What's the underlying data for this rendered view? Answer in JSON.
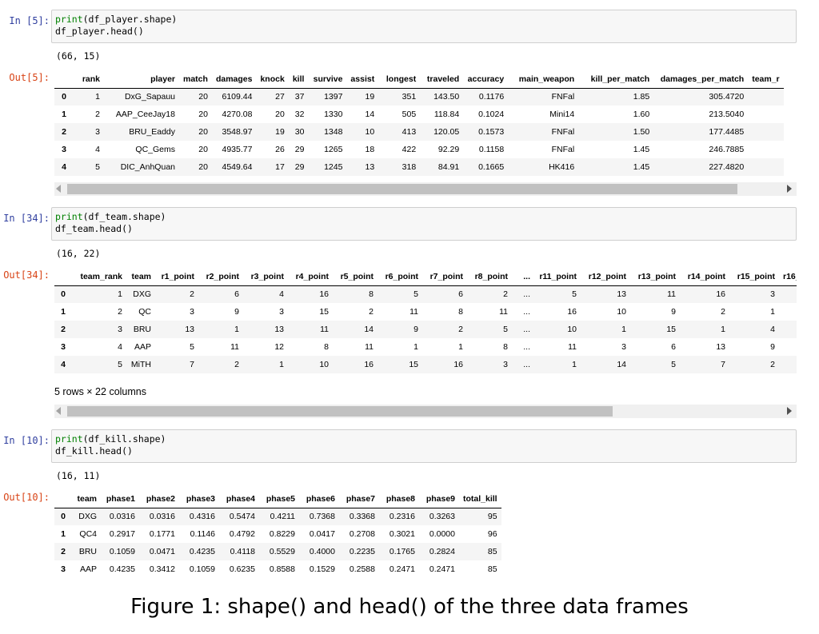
{
  "cell1": {
    "in_prompt": "In [5]:",
    "code_print": "print",
    "code_line1_rest": "(df_player.shape)",
    "code_line2": "df_player.head()",
    "shape": "(66, 15)",
    "out_prompt": "Out[5]:",
    "columns": [
      "",
      "rank",
      "player",
      "match",
      "damages",
      "knock",
      "kill",
      "survive",
      "assist",
      "longest",
      "traveled",
      "accuracy",
      "main_weapon",
      "kill_per_match",
      "damages_per_match",
      "team_r"
    ],
    "rows": [
      [
        "0",
        "1",
        "DxG_Sapauu",
        "20",
        "6109.44",
        "27",
        "37",
        "1397",
        "19",
        "351",
        "143.50",
        "0.1176",
        "FNFal",
        "1.85",
        "305.4720",
        ""
      ],
      [
        "1",
        "2",
        "AAP_CeeJay18",
        "20",
        "4270.08",
        "20",
        "32",
        "1330",
        "14",
        "505",
        "118.84",
        "0.1024",
        "Mini14",
        "1.60",
        "213.5040",
        ""
      ],
      [
        "2",
        "3",
        "BRU_Eaddy",
        "20",
        "3548.97",
        "19",
        "30",
        "1348",
        "10",
        "413",
        "120.05",
        "0.1573",
        "FNFal",
        "1.50",
        "177.4485",
        ""
      ],
      [
        "3",
        "4",
        "QC_Gems",
        "20",
        "4935.77",
        "26",
        "29",
        "1265",
        "18",
        "422",
        "92.29",
        "0.1158",
        "FNFal",
        "1.45",
        "246.7885",
        ""
      ],
      [
        "4",
        "5",
        "DIC_AnhQuan",
        "20",
        "4549.64",
        "17",
        "29",
        "1245",
        "13",
        "318",
        "84.91",
        "0.1665",
        "HK416",
        "1.45",
        "227.4820",
        ""
      ]
    ]
  },
  "cell2": {
    "in_prompt": "In [34]:",
    "code_print": "print",
    "code_line1_rest": "(df_team.shape)",
    "code_line2": "df_team.head()",
    "shape": "(16, 22)",
    "out_prompt": "Out[34]:",
    "columns": [
      "",
      "team_rank",
      "team",
      "r1_point",
      "r2_point",
      "r3_point",
      "r4_point",
      "r5_point",
      "r6_point",
      "r7_point",
      "r8_point",
      "...",
      "r11_point",
      "r12_point",
      "r13_point",
      "r14_point",
      "r15_point",
      "r16_"
    ],
    "rows": [
      [
        "0",
        "1",
        "DXG",
        "2",
        "6",
        "4",
        "16",
        "8",
        "5",
        "6",
        "2",
        "...",
        "5",
        "13",
        "11",
        "16",
        "3",
        ""
      ],
      [
        "1",
        "2",
        "QC",
        "3",
        "9",
        "3",
        "15",
        "2",
        "11",
        "8",
        "11",
        "...",
        "16",
        "10",
        "9",
        "2",
        "1",
        ""
      ],
      [
        "2",
        "3",
        "BRU",
        "13",
        "1",
        "13",
        "11",
        "14",
        "9",
        "2",
        "5",
        "...",
        "10",
        "1",
        "15",
        "1",
        "4",
        ""
      ],
      [
        "3",
        "4",
        "AAP",
        "5",
        "11",
        "12",
        "8",
        "11",
        "1",
        "1",
        "8",
        "...",
        "11",
        "3",
        "6",
        "13",
        "9",
        ""
      ],
      [
        "4",
        "5",
        "MiTH",
        "7",
        "2",
        "1",
        "10",
        "16",
        "15",
        "16",
        "3",
        "...",
        "1",
        "14",
        "5",
        "7",
        "2",
        ""
      ]
    ],
    "summary": "5 rows × 22 columns"
  },
  "cell3": {
    "in_prompt": "In [10]:",
    "code_print": "print",
    "code_line1_rest": "(df_kill.shape)",
    "code_line2": "df_kill.head()",
    "shape": "(16, 11)",
    "out_prompt": "Out[10]:",
    "columns": [
      "",
      "team",
      "phase1",
      "phase2",
      "phase3",
      "phase4",
      "phase5",
      "phase6",
      "phase7",
      "phase8",
      "phase9",
      "total_kill"
    ],
    "rows": [
      [
        "0",
        "DXG",
        "0.0316",
        "0.0316",
        "0.4316",
        "0.5474",
        "0.4211",
        "0.7368",
        "0.3368",
        "0.2316",
        "0.3263",
        "95"
      ],
      [
        "1",
        "QC4",
        "0.2917",
        "0.1771",
        "0.1146",
        "0.4792",
        "0.8229",
        "0.0417",
        "0.2708",
        "0.3021",
        "0.0000",
        "96"
      ],
      [
        "2",
        "BRU",
        "0.1059",
        "0.0471",
        "0.4235",
        "0.4118",
        "0.5529",
        "0.4000",
        "0.2235",
        "0.1765",
        "0.2824",
        "85"
      ],
      [
        "3",
        "AAP",
        "0.4235",
        "0.3412",
        "0.1059",
        "0.6235",
        "0.8588",
        "0.1529",
        "0.2588",
        "0.2471",
        "0.2471",
        "85"
      ]
    ]
  },
  "caption": "Figure 1: shape() and head() of the three data frames",
  "icons": {
    "scroll_left": "triangle-left-icon",
    "scroll_right": "triangle-right-icon"
  }
}
